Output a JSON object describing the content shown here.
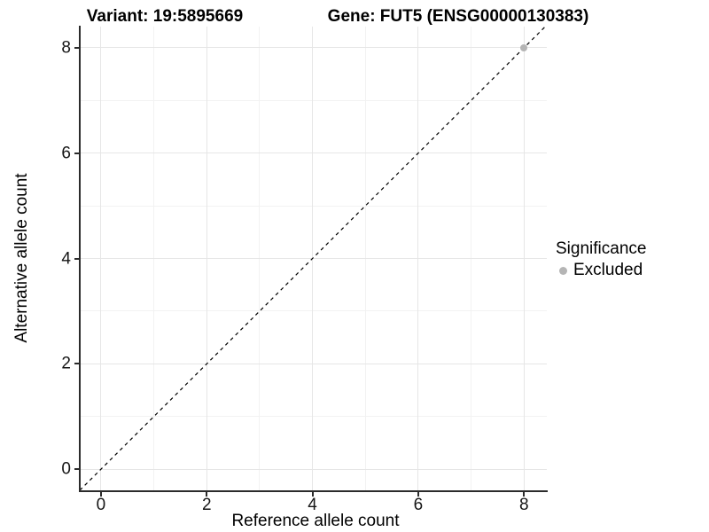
{
  "header": {
    "variant_title": "Variant: 19:5895669",
    "gene_title": "Gene: FUT5 (ENSG00000130383)"
  },
  "axes": {
    "x": {
      "label": "Reference allele count"
    },
    "y": {
      "label": "Alternative allele count"
    }
  },
  "legend": {
    "title": "Significance",
    "items": [
      {
        "label": "Excluded",
        "color": "#b5b5b5"
      }
    ]
  },
  "colors": {
    "background": "#ffffff",
    "grid_major": "#e6e6e6",
    "grid_minor": "#f2f2f2",
    "axis_line": "#2b2b2b",
    "tick_text": "#161616",
    "point_excluded": "#b5b5b5",
    "reference_line": "#000000"
  },
  "chart_data": {
    "type": "scatter",
    "title": "Variant: 19:5895669   Gene: FUT5 (ENSG00000130383)",
    "xlabel": "Reference allele count",
    "ylabel": "Alternative allele count",
    "xlim": [
      -0.4,
      8.43
    ],
    "ylim": [
      -0.4,
      8.4
    ],
    "x_ticks": [
      0,
      2,
      4,
      6,
      8
    ],
    "y_ticks": [
      0,
      2,
      4,
      6,
      8
    ],
    "x_minor_ticks": [
      1,
      3,
      5,
      7
    ],
    "y_minor_ticks": [
      1,
      3,
      5,
      7
    ],
    "grid": true,
    "series": [
      {
        "name": "Excluded",
        "color": "#b5b5b5",
        "point_size": 8,
        "points": [
          [
            8,
            8
          ]
        ]
      }
    ],
    "reference_line": {
      "type": "abline",
      "slope": 1,
      "intercept": 0,
      "style": "dashed",
      "color": "#000000"
    },
    "legend": {
      "title": "Significance",
      "position": "right",
      "entries": [
        "Excluded"
      ]
    }
  }
}
